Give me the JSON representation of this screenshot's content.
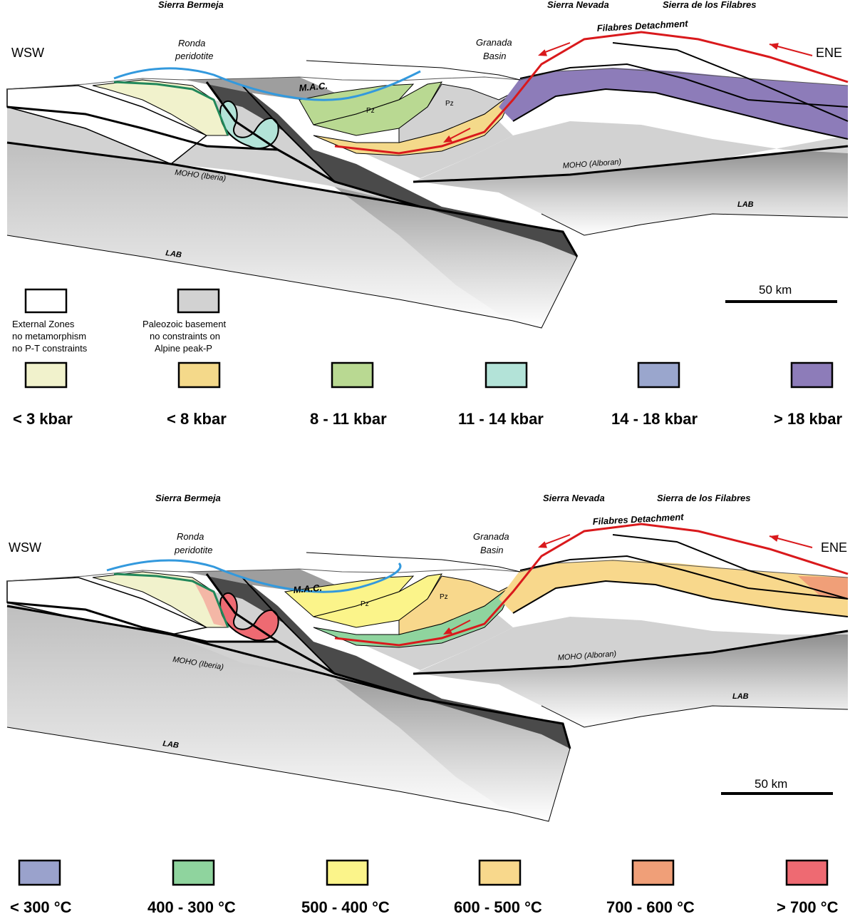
{
  "panels": [
    {
      "id": "pressure",
      "labels": {
        "sierra_bermeja": "Sierra Bermeja",
        "sierra_nevada": "Sierra Nevada",
        "sierra_filabres": "Sierra de los Filabres",
        "filabres_detachment": "Filabres Detachment",
        "ronda_line1": "Ronda",
        "ronda_line2": "peridotite",
        "granada_line1": "Granada",
        "granada_line2": "Basin",
        "wsw": "WSW",
        "ene": "ENE",
        "mac": "M.A.C.",
        "pz": "Pz",
        "moho_iberia": "MOHO (Iberia)",
        "moho_alboran": "MOHO (Alboran)",
        "lab": "LAB",
        "scale": "50 km"
      },
      "colors": {
        "lt3": "#f1f2cc",
        "lt8": "#f4d98a",
        "k8_11": "#b9d992",
        "k11_14": "#b3e3d8",
        "k14_18": "#9aa6cd",
        "gt18": "#8d7cb9",
        "basement": "#d2d2d2",
        "mantle_dark": "#4a4a4a",
        "detachment": "#d9191c",
        "blue_line": "#3399dd",
        "green_line": "#21875a"
      }
    },
    {
      "id": "temperature",
      "labels": {
        "sierra_bermeja": "Sierra Bermeja",
        "sierra_nevada": "Sierra Nevada",
        "sierra_filabres": "Sierra de los Filabres",
        "filabres_detachment": "Filabres Detachment",
        "ronda_line1": "Ronda",
        "ronda_line2": "peridotite",
        "granada_line1": "Granada",
        "granada_line2": "Basin",
        "wsw": "WSW",
        "ene": "ENE",
        "mac": "M.A.C.",
        "pz": "Pz",
        "moho_iberia": "MOHO (Iberia)",
        "moho_alboran": "MOHO (Alboran)",
        "lab": "LAB",
        "scale": "50 km"
      },
      "colors": {
        "t300": "#9aa2cc",
        "t400_300": "#8fd49e",
        "t500_400": "#fbf48a",
        "t600_500": "#f8d88c",
        "t700_600": "#f09f78",
        "t700": "#ee6a72"
      }
    }
  ],
  "legend_top": {
    "external_zones": [
      "External Zones",
      "no metamorphism",
      "no P-T constraints"
    ],
    "paleozoic": [
      "Paleozoic basement",
      "no constraints on",
      "Alpine peak-P"
    ],
    "external_color": "#ffffff",
    "paleozoic_color": "#d2d2d2"
  },
  "legend_pressure": [
    {
      "label": "< 3 kbar",
      "color": "#f1f2cc"
    },
    {
      "label": "< 8 kbar",
      "color": "#f4d98a"
    },
    {
      "label": "8 - 11 kbar",
      "color": "#b9d992"
    },
    {
      "label": "11 - 14 kbar",
      "color": "#b3e3d8"
    },
    {
      "label": "14 - 18 kbar",
      "color": "#9aa6cd"
    },
    {
      "label": "> 18 kbar",
      "color": "#8d7cb9"
    }
  ],
  "legend_temperature": [
    {
      "label": "< 300 °C",
      "color": "#9aa2cc"
    },
    {
      "label": "400 - 300 °C",
      "color": "#8fd49e"
    },
    {
      "label": "500 - 400 °C",
      "color": "#fbf48a"
    },
    {
      "label": "600 - 500 °C",
      "color": "#f8d88c"
    },
    {
      "label": "700 - 600 °C",
      "color": "#f09f78"
    },
    {
      "label": "> 700 °C",
      "color": "#ee6a72"
    }
  ]
}
